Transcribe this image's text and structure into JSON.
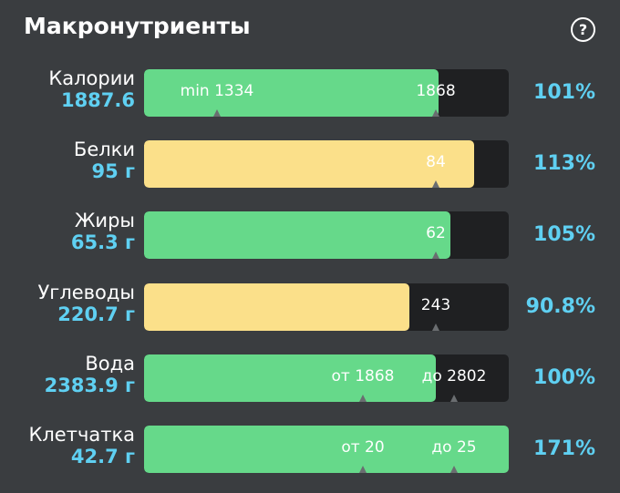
{
  "header": {
    "title": "Макронутриенты",
    "help": "?"
  },
  "rows": [
    {
      "name": "Калории",
      "amount": "1887.6",
      "markers": [
        "min 1334",
        "1868"
      ],
      "percent": {
        "value": 101,
        "label": "101%"
      },
      "color": "#66d98a"
    },
    {
      "name": "Белки",
      "amount": "95 г",
      "markers": [
        "84"
      ],
      "percent": {
        "value": 113,
        "label": "113%"
      },
      "color": "#fbe08a"
    },
    {
      "name": "Жиры",
      "amount": "65.3 г",
      "markers": [
        "62"
      ],
      "percent": {
        "value": 105,
        "label": "105%"
      },
      "color": "#66d98a"
    },
    {
      "name": "Углеводы",
      "amount": "220.7 г",
      "markers": [
        "243"
      ],
      "percent": {
        "value": 90.8,
        "label": "90.8%"
      },
      "color": "#fbe08a"
    },
    {
      "name": "Вода",
      "amount": "2383.9 г",
      "markers": [
        "от 1868",
        "до 2802"
      ],
      "percent": {
        "value": 100,
        "label": "100%"
      },
      "color": "#66d98a"
    },
    {
      "name": "Клетчатка",
      "amount": "42.7 г",
      "markers": [
        "от 20",
        "до 25"
      ],
      "percent": {
        "value": 171,
        "label": "171%"
      },
      "color": "#66d98a"
    }
  ]
}
